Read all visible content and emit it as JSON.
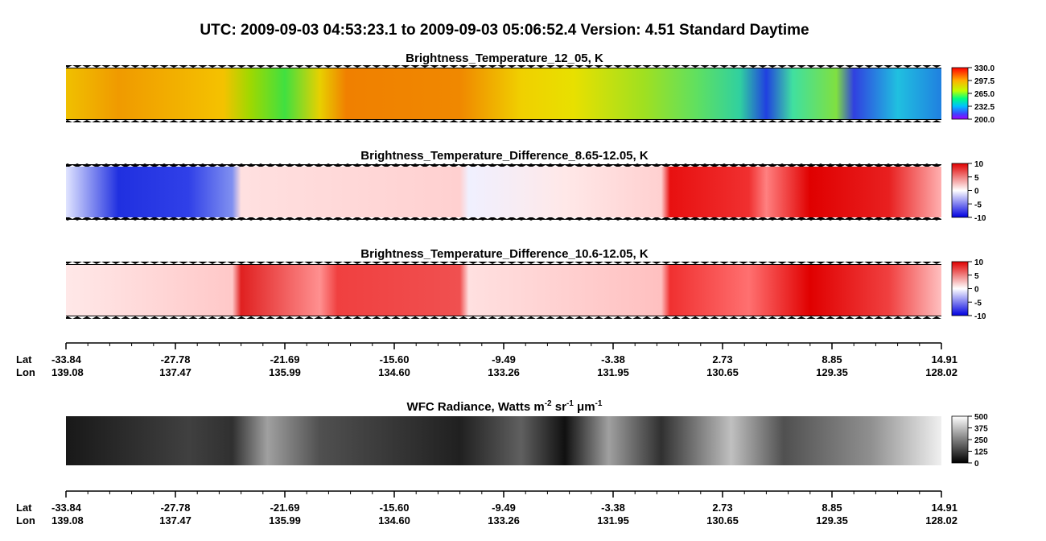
{
  "header": {
    "title": "UTC:  2009-09-03   04:53:23.1  to  2009-09-03   05:06:52.4    Version: 4.51  Standard Daytime"
  },
  "panels": [
    {
      "title": "Brightness_Temperature_12_05, K",
      "colorbar": [
        "330.0",
        "297.5",
        "265.0",
        "232.5",
        "200.0"
      ]
    },
    {
      "title": "Brightness_Temperature_Difference_8.65-12.05, K",
      "colorbar": [
        "10",
        "5",
        "0",
        "-5",
        "-10"
      ]
    },
    {
      "title": "Brightness_Temperature_Difference_10.6-12.05, K",
      "colorbar": [
        "10",
        "5",
        "0",
        "-5",
        "-10"
      ]
    },
    {
      "title_parts": [
        "WFC Radiance, Watts m",
        "-2",
        " sr",
        "-1",
        " μm",
        "-1"
      ],
      "colorbar": [
        "500",
        "375",
        "250",
        "125",
        "0"
      ]
    }
  ],
  "axes": [
    {
      "lat_label": "Lat",
      "lon_label": "Lon",
      "lat": [
        "-33.84",
        "-27.78",
        "-21.69",
        "-15.60",
        "-9.49",
        "-3.38",
        "2.73",
        "8.85",
        "14.91"
      ],
      "lon": [
        "139.08",
        "137.47",
        "135.99",
        "134.60",
        "133.26",
        "131.95",
        "130.65",
        "129.35",
        "128.02"
      ]
    },
    {
      "lat_label": "Lat",
      "lon_label": "Lon",
      "lat": [
        "-33.84",
        "-27.78",
        "-21.69",
        "-15.60",
        "-9.49",
        "-3.38",
        "2.73",
        "8.85",
        "14.91"
      ],
      "lon": [
        "139.08",
        "137.47",
        "135.99",
        "134.60",
        "133.26",
        "131.95",
        "130.65",
        "129.35",
        "128.02"
      ]
    }
  ]
}
